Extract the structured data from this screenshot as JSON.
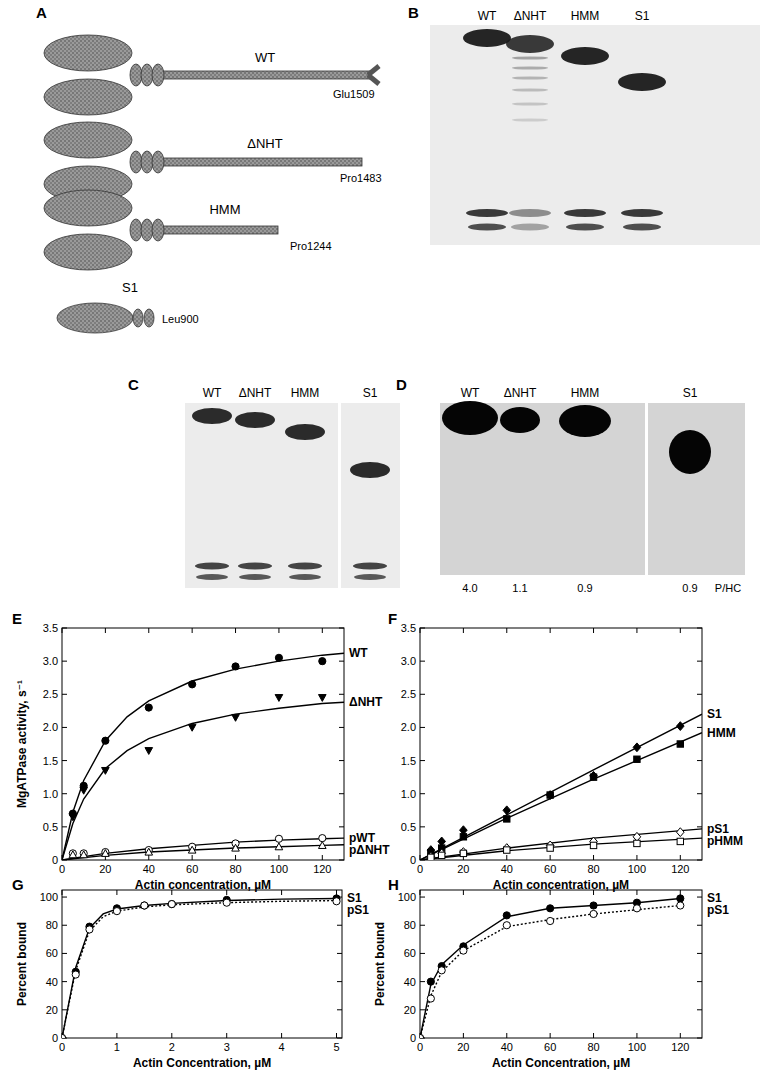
{
  "panels": {
    "a": {
      "label": "A",
      "constructs": [
        {
          "name": "WT",
          "end": "Glu1509"
        },
        {
          "name": "ΔNHT",
          "end": "Pro1483"
        },
        {
          "name": "HMM",
          "end": "Pro1244"
        },
        {
          "name": "S1",
          "end": "Leu900"
        }
      ]
    },
    "b": {
      "label": "B",
      "lanes": [
        "WT",
        "ΔNHT",
        "HMM",
        "S1"
      ]
    },
    "c": {
      "label": "C",
      "lanes": [
        "WT",
        "ΔNHT",
        "HMM",
        "S1"
      ]
    },
    "d": {
      "label": "D",
      "lanes": [
        "WT",
        "ΔNHT",
        "HMM",
        "S1"
      ],
      "values": [
        "4.0",
        "1.1",
        "0.9",
        "0.9"
      ],
      "unit": "P/HC"
    }
  },
  "chart_data": [
    {
      "type": "scatter",
      "title": "E",
      "xlabel": "Actin concentration, µM",
      "ylabel": "MgATPase activity, s⁻¹",
      "xlim": [
        0,
        130
      ],
      "xticks": [
        0,
        20,
        40,
        60,
        80,
        100,
        120
      ],
      "ylim": [
        0,
        3.5
      ],
      "yticks": [
        0,
        0.5,
        {
          "value": 1,
          "label": "1.0"
        },
        1.5,
        {
          "value": 2,
          "label": "2.0"
        },
        2.5,
        {
          "value": 3,
          "label": "3.0"
        },
        3.5
      ],
      "grid": false,
      "series": [
        {
          "name": "WT",
          "color": "#000000",
          "marker": "filled-circle",
          "line_style": "solid",
          "x": [
            5,
            10,
            20,
            40,
            60,
            80,
            100,
            120
          ],
          "values": [
            0.7,
            1.12,
            1.8,
            2.3,
            2.65,
            2.92,
            3.05,
            3.0
          ],
          "fit_x": [
            0,
            5,
            10,
            20,
            30,
            40,
            60,
            80,
            100,
            120,
            130
          ],
          "fit_values": [
            0,
            0.72,
            1.2,
            1.8,
            2.16,
            2.4,
            2.7,
            2.88,
            3.0,
            3.09,
            3.12
          ]
        },
        {
          "name": "ΔNHT",
          "color": "#000000",
          "marker": "filled-triangle-down",
          "line_style": "solid",
          "x": [
            5,
            10,
            20,
            40,
            60,
            80,
            100,
            120
          ],
          "values": [
            0.65,
            1.05,
            1.35,
            1.65,
            2.0,
            2.15,
            2.45,
            2.45
          ],
          "fit_x": [
            0,
            5,
            10,
            20,
            30,
            40,
            60,
            80,
            100,
            120,
            130
          ],
          "fit_values": [
            0,
            0.55,
            0.92,
            1.38,
            1.65,
            1.83,
            2.06,
            2.2,
            2.29,
            2.36,
            2.38
          ]
        },
        {
          "name": "pWT",
          "color": "#000000",
          "marker": "open-circle",
          "line_style": "solid",
          "x": [
            5,
            10,
            20,
            40,
            60,
            80,
            100,
            120
          ],
          "values": [
            0.1,
            0.1,
            0.12,
            0.15,
            0.2,
            0.25,
            0.32,
            0.33
          ],
          "fit_x": [
            0,
            20,
            40,
            60,
            80,
            100,
            120,
            130
          ],
          "fit_values": [
            0,
            0.1,
            0.17,
            0.22,
            0.27,
            0.3,
            0.32,
            0.33
          ]
        },
        {
          "name": "pΔNHT",
          "color": "#000000",
          "marker": "open-triangle-up",
          "line_style": "solid",
          "x": [
            5,
            10,
            20,
            40,
            60,
            80,
            100,
            120
          ],
          "values": [
            0.08,
            0.08,
            0.1,
            0.12,
            0.15,
            0.18,
            0.2,
            0.22
          ],
          "fit_x": [
            0,
            20,
            40,
            60,
            80,
            100,
            120,
            130
          ],
          "fit_values": [
            0,
            0.07,
            0.12,
            0.15,
            0.18,
            0.2,
            0.22,
            0.23
          ]
        }
      ]
    },
    {
      "type": "scatter",
      "title": "F",
      "xlabel": "Actin concentration, µM",
      "xlim": [
        0,
        130
      ],
      "xticks": [
        0,
        20,
        40,
        60,
        80,
        100,
        120
      ],
      "ylim": [
        0,
        3.5
      ],
      "yticks": [
        0,
        0.5,
        {
          "value": 1,
          "label": "1.0"
        },
        1.5,
        {
          "value": 2,
          "label": "2.0"
        },
        2.5,
        {
          "value": 3,
          "label": "3.0"
        },
        3.5
      ],
      "grid": false,
      "series": [
        {
          "name": "S1",
          "color": "#000000",
          "marker": "filled-diamond",
          "line_style": "solid",
          "x": [
            5,
            10,
            20,
            40,
            60,
            80,
            100,
            120
          ],
          "values": [
            0.15,
            0.28,
            0.45,
            0.75,
            0.98,
            1.27,
            1.7,
            2.02
          ],
          "fit_x": [
            0,
            40,
            80,
            130
          ],
          "fit_values": [
            0,
            0.68,
            1.36,
            2.2
          ]
        },
        {
          "name": "HMM",
          "color": "#000000",
          "marker": "filled-square",
          "line_style": "solid",
          "x": [
            5,
            10,
            20,
            40,
            60,
            80,
            100,
            120
          ],
          "values": [
            0.1,
            0.18,
            0.35,
            0.62,
            0.98,
            1.25,
            1.52,
            1.75
          ],
          "fit_x": [
            0,
            40,
            80,
            130
          ],
          "fit_values": [
            0,
            0.63,
            1.22,
            1.92
          ]
        },
        {
          "name": "pS1",
          "color": "#000000",
          "marker": "open-diamond",
          "line_style": "solid",
          "x": [
            5,
            10,
            20,
            40,
            60,
            80,
            100,
            120
          ],
          "values": [
            0.05,
            0.1,
            0.12,
            0.18,
            0.22,
            0.28,
            0.35,
            0.42
          ],
          "fit_x": [
            0,
            40,
            80,
            130
          ],
          "fit_values": [
            0,
            0.18,
            0.33,
            0.47
          ]
        },
        {
          "name": "pHMM",
          "color": "#000000",
          "marker": "open-square",
          "line_style": "solid",
          "x": [
            5,
            10,
            20,
            40,
            60,
            80,
            100,
            120
          ],
          "values": [
            0.04,
            0.07,
            0.1,
            0.15,
            0.18,
            0.22,
            0.25,
            0.28
          ],
          "fit_x": [
            0,
            40,
            80,
            130
          ],
          "fit_values": [
            0,
            0.14,
            0.24,
            0.33
          ]
        }
      ]
    },
    {
      "type": "scatter",
      "title": "G",
      "xlabel": "Actin Concentration, µM",
      "ylabel": "Percent bound",
      "xlim": [
        0,
        5.1
      ],
      "xticks": [
        0,
        1,
        2,
        3,
        4,
        5
      ],
      "ylim": [
        0,
        105
      ],
      "yticks": [
        0,
        20,
        40,
        60,
        80,
        100
      ],
      "grid": false,
      "series": [
        {
          "name": "S1",
          "color": "#000000",
          "marker": "filled-circle",
          "line_style": "solid",
          "x": [
            0,
            0.25,
            0.5,
            1,
            1.5,
            2,
            3,
            5
          ],
          "values": [
            0,
            47,
            79,
            92,
            94,
            95,
            98,
            99
          ],
          "fit_x": [
            0,
            0.25,
            0.5,
            0.75,
            1,
            1.5,
            2,
            3,
            4,
            5
          ],
          "fit_values": [
            0,
            50,
            78,
            88,
            91.5,
            94,
            95.5,
            97.5,
            98.5,
            99
          ]
        },
        {
          "name": "pS1",
          "color": "#000000",
          "marker": "open-circle",
          "line_style": "dotted",
          "x": [
            0,
            0.25,
            0.5,
            1,
            1.5,
            2,
            3,
            5
          ],
          "values": [
            0,
            45,
            77,
            90,
            94,
            95,
            96,
            97
          ],
          "fit_x": [
            0,
            0.25,
            0.5,
            0.75,
            1,
            1.5,
            2,
            3,
            4,
            5
          ],
          "fit_values": [
            0,
            48,
            76,
            86,
            90,
            93,
            94.5,
            96,
            97,
            97.5
          ]
        }
      ]
    },
    {
      "type": "scatter",
      "title": "H",
      "xlabel": "Actin Concentration, µM",
      "ylabel": "Percent bound",
      "xlim": [
        0,
        130
      ],
      "xticks": [
        0,
        20,
        40,
        60,
        80,
        100,
        120
      ],
      "ylim": [
        0,
        105
      ],
      "yticks": [
        0,
        20,
        40,
        60,
        80,
        100
      ],
      "grid": false,
      "series": [
        {
          "name": "S1",
          "color": "#000000",
          "marker": "filled-circle",
          "line_style": "solid",
          "x": [
            0,
            5,
            10,
            20,
            40,
            60,
            80,
            100,
            120
          ],
          "values": [
            0,
            40,
            51,
            65,
            87,
            92,
            94,
            96,
            99
          ],
          "fit_x": [
            0,
            5,
            10,
            20,
            40,
            60,
            80,
            100,
            120
          ],
          "fit_values": [
            0,
            38,
            52,
            66,
            86,
            92,
            94,
            96,
            99
          ]
        },
        {
          "name": "pS1",
          "color": "#000000",
          "marker": "open-circle",
          "line_style": "dotted",
          "x": [
            0,
            5,
            10,
            20,
            40,
            60,
            80,
            100,
            120
          ],
          "values": [
            0,
            28,
            48,
            62,
            80,
            83,
            88,
            92,
            94
          ],
          "fit_x": [
            0,
            5,
            10,
            20,
            40,
            60,
            80,
            100,
            120
          ],
          "fit_values": [
            0,
            30,
            47,
            62,
            79,
            84,
            88,
            91,
            94
          ]
        }
      ]
    }
  ]
}
